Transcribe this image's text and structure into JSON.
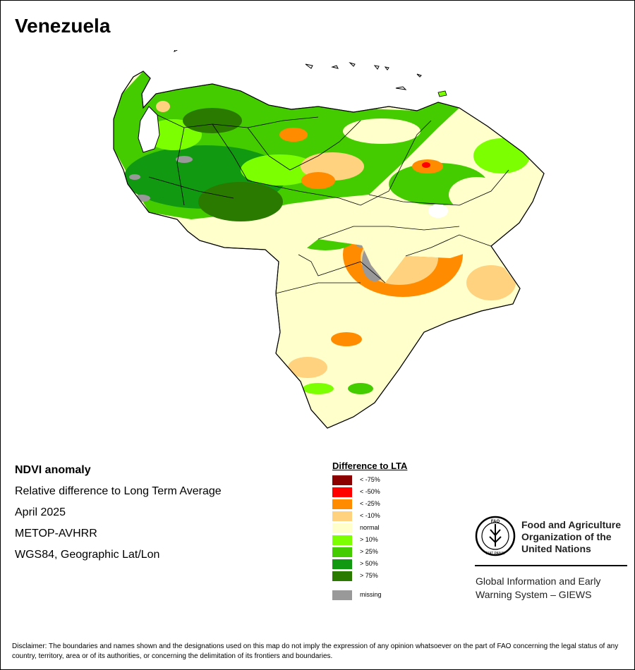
{
  "title": "Venezuela",
  "info": {
    "product": "NDVI anomaly",
    "description": "Relative difference to Long Term Average",
    "period": "April 2025",
    "sensor": "METOP-AVHRR",
    "projection": "WGS84, Geographic Lat/Lon"
  },
  "legend": {
    "title": "Difference to LTA",
    "items": [
      {
        "label": "< -75%",
        "color": "#8b0000"
      },
      {
        "label": "< -50%",
        "color": "#ff0000"
      },
      {
        "label": "< -25%",
        "color": "#ff8c00"
      },
      {
        "label": "< -10%",
        "color": "#ffd27f"
      },
      {
        "label": "normal",
        "color": "#ffffcc"
      },
      {
        "label": "> 10%",
        "color": "#7cff00"
      },
      {
        "label": "> 25%",
        "color": "#44cc00"
      },
      {
        "label": "> 50%",
        "color": "#119911"
      },
      {
        "label": "> 75%",
        "color": "#2a7a00"
      }
    ],
    "missing": {
      "label": "missing",
      "color": "#999999"
    }
  },
  "org": {
    "name": "Food and Agriculture Organization of the United Nations",
    "logo_text": "FAO",
    "logo_motto": "FIAT PANIS",
    "system": "Global Information and Early Warning System – GIEWS"
  },
  "disclaimer": "Disclaimer: The boundaries and names shown and the designations used on this map do not imply the expression of any opinion whatsoever on the part of FAO concerning the legal status of any country, territory, area or of its authorities, or concerning the delimitation of its frontiers and boundaries."
}
